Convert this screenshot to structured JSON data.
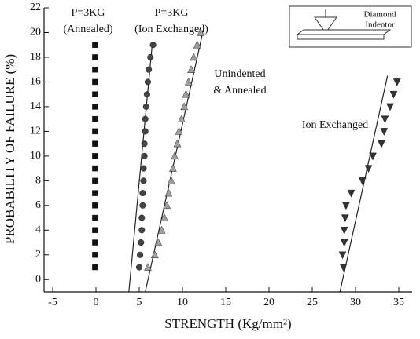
{
  "chart_data": {
    "type": "scatter",
    "x_label": "STRENGTH (Kg/mm²)",
    "y_label": "PROBABILITY OF FAILURE (%)",
    "xlim": [
      -6,
      36.5
    ],
    "ylim": [
      -1,
      22
    ],
    "xticks": [
      -5,
      0,
      5,
      10,
      15,
      20,
      25,
      30,
      35
    ],
    "yticks": [
      0,
      2,
      4,
      6,
      8,
      10,
      12,
      14,
      16,
      18,
      20,
      22
    ],
    "inset_label": [
      "Diamond",
      "Indentor"
    ],
    "series": [
      {
        "label": [
          "P=3KG",
          "(Annealed)"
        ],
        "marker": "square",
        "color": "#111111",
        "x": [
          -0.1,
          -0.1,
          -0.1,
          -0.1,
          -0.1,
          -0.1,
          -0.1,
          -0.1,
          -0.1,
          -0.1,
          -0.1,
          -0.1,
          -0.1,
          -0.1,
          -0.1,
          -0.1,
          -0.1,
          -0.1,
          -0.1
        ],
        "values": [
          1,
          2,
          3,
          4,
          5,
          6,
          7,
          8,
          9,
          10,
          11,
          12,
          13,
          14,
          15,
          16,
          17,
          18,
          19
        ]
      },
      {
        "label": [
          "P=3KG",
          "(Ion Exchanged)"
        ],
        "marker": "circle",
        "color": "#444444",
        "x": [
          5.0,
          5.1,
          5.2,
          5.3,
          5.3,
          5.4,
          5.4,
          5.5,
          5.5,
          5.6,
          5.6,
          5.7,
          5.7,
          5.8,
          5.9,
          6.0,
          6.1,
          6.3,
          6.6
        ],
        "values": [
          1,
          2,
          3,
          4,
          5,
          6,
          7,
          8,
          9,
          10,
          11,
          12,
          13,
          14,
          15,
          16,
          17,
          18,
          19
        ],
        "fit_x": [
          3.8,
          6.5
        ],
        "fit_y": [
          -1,
          19
        ]
      },
      {
        "label": [
          "Unindented",
          "& Annealed"
        ],
        "marker": "triangle",
        "color": "#a0a0a0",
        "x": [
          6.0,
          6.8,
          7.2,
          7.6,
          7.9,
          8.2,
          8.4,
          8.7,
          8.9,
          9.1,
          9.4,
          9.6,
          9.9,
          10.2,
          10.4,
          10.7,
          11.0,
          11.3,
          11.7,
          12.1
        ],
        "values": [
          1,
          2,
          3,
          4,
          5,
          6,
          7,
          8,
          9,
          10,
          11,
          12,
          13,
          14,
          15,
          16,
          17,
          18,
          19,
          20
        ],
        "fit_x": [
          5.7,
          12.5
        ],
        "fit_y": [
          -1,
          20.5
        ]
      },
      {
        "label": [
          "Ion Exchanged"
        ],
        "marker": "triangle-down",
        "color": "#333333",
        "x": [
          28.6,
          28.5,
          28.7,
          28.7,
          28.8,
          28.9,
          29.5,
          30.8,
          31.5,
          32.0,
          33.0,
          33.3,
          33.4,
          34.0,
          34.4,
          34.8
        ],
        "values": [
          1,
          2,
          3,
          4,
          5,
          6,
          7,
          8,
          9,
          10,
          11,
          12,
          13,
          14,
          15,
          16
        ],
        "fit_x": [
          28.2,
          33.7
        ],
        "fit_y": [
          -1,
          16.5
        ]
      }
    ]
  }
}
